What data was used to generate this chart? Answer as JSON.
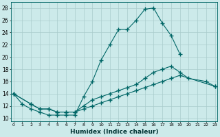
{
  "xlabel": "Humidex (Indice chaleur)",
  "bg_color": "#cceaea",
  "grid_color": "#aacccc",
  "line_color": "#006666",
  "line1_x": [
    0,
    1,
    2,
    3,
    4,
    5,
    6,
    7,
    8,
    9,
    10,
    11,
    12,
    13,
    14,
    15,
    16,
    17,
    18,
    19
  ],
  "line1_y": [
    14.0,
    12.3,
    11.5,
    11.0,
    10.5,
    10.5,
    10.5,
    10.5,
    13.5,
    16.0,
    19.5,
    22.0,
    24.5,
    24.5,
    26.0,
    27.8,
    28.0,
    25.5,
    23.5,
    20.5
  ],
  "line2_x": [
    0,
    2,
    3,
    4,
    5,
    6,
    7,
    8,
    9,
    10,
    11,
    12,
    13,
    14,
    15,
    16,
    17,
    18,
    19,
    20,
    22,
    23
  ],
  "line2_y": [
    14.0,
    12.3,
    11.5,
    11.5,
    11.0,
    11.0,
    11.0,
    12.0,
    13.0,
    13.5,
    14.0,
    14.5,
    15.0,
    15.5,
    16.5,
    17.5,
    18.0,
    18.5,
    17.5,
    16.5,
    16.0,
    15.2
  ],
  "line3_x": [
    0,
    2,
    3,
    4,
    5,
    6,
    7,
    8,
    9,
    10,
    11,
    12,
    13,
    14,
    15,
    16,
    17,
    18,
    19,
    23
  ],
  "line3_y": [
    14.0,
    12.3,
    11.5,
    11.5,
    11.0,
    11.0,
    11.0,
    11.5,
    12.0,
    12.5,
    13.0,
    13.5,
    14.0,
    14.5,
    15.0,
    15.5,
    16.0,
    16.5,
    17.0,
    15.2
  ],
  "xlim": [
    -0.3,
    23.3
  ],
  "ylim": [
    9.5,
    29.0
  ],
  "yticks": [
    10,
    12,
    14,
    16,
    18,
    20,
    22,
    24,
    26,
    28
  ],
  "xticks": [
    0,
    1,
    2,
    3,
    4,
    5,
    6,
    7,
    8,
    9,
    10,
    11,
    12,
    13,
    14,
    15,
    16,
    17,
    18,
    19,
    20,
    21,
    22,
    23
  ]
}
